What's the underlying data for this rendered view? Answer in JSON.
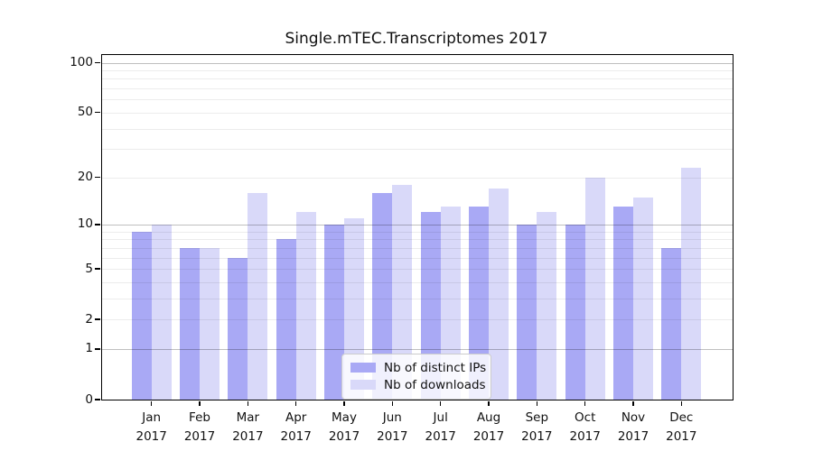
{
  "chart_data": {
    "type": "bar",
    "title": "Single.mTEC.Transcriptomes 2017",
    "xlabel": "",
    "ylabel": "",
    "categories": [
      "Jan",
      "Feb",
      "Mar",
      "Apr",
      "May",
      "Jun",
      "Jul",
      "Aug",
      "Sep",
      "Oct",
      "Nov",
      "Dec"
    ],
    "category_year": "2017",
    "series": [
      {
        "name": "Nb of distinct IPs",
        "color": "#a9a9f5",
        "values": [
          9,
          7,
          6,
          8,
          10,
          16,
          12,
          13,
          10,
          10,
          13,
          7
        ]
      },
      {
        "name": "Nb of downloads",
        "color": "#d9d9f9",
        "values": [
          10,
          7,
          16,
          12,
          11,
          18,
          13,
          17,
          12,
          20,
          15,
          23
        ]
      }
    ],
    "yscale": "log1p",
    "ylim": [
      0,
      112
    ],
    "ytick_labels": [
      "0",
      "1",
      "2",
      "5",
      "10",
      "20",
      "50",
      "100"
    ],
    "ytick_values": [
      0,
      1,
      2,
      5,
      10,
      20,
      50,
      100
    ],
    "gridlines": {
      "major_values": [
        1,
        10,
        100
      ],
      "minor_values": [
        2,
        3,
        4,
        5,
        6,
        7,
        8,
        9,
        20,
        30,
        40,
        50,
        60,
        70,
        80,
        90
      ]
    },
    "grid": true,
    "legend_position": "bottom-center"
  },
  "colors": {
    "series_ips": "#a9a9f5",
    "series_downloads": "#d9d9f9",
    "spine": "#000000",
    "major_grid": "#c3c3c3",
    "minor_grid": "#e9e9e9",
    "legend_border": "#cccccc"
  }
}
